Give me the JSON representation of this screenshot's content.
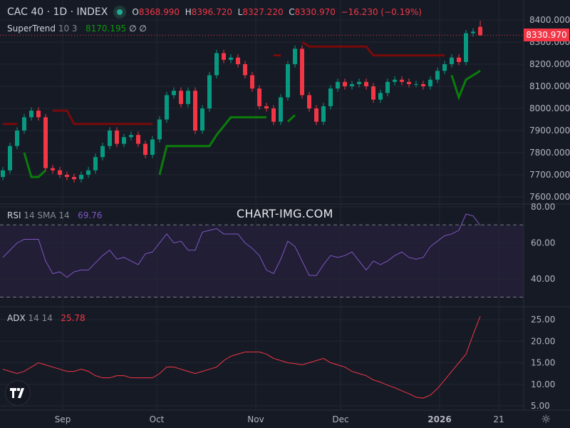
{
  "header": {
    "symbol": "CAC 40 · 1D · INDEX",
    "open_label": "O",
    "open": "8368.990",
    "high_label": "H",
    "high": "8396.720",
    "low_label": "L",
    "low": "8327.220",
    "close_label": "C",
    "close": "8330.970",
    "change": "−16.230 (−0.19%)"
  },
  "supertrend_legend": {
    "name": "SuperTrend",
    "params": "10 3",
    "value": "8170.195",
    "extra1": "∅",
    "extra2": "∅"
  },
  "rsi_legend": {
    "name": "RSI",
    "params": "14 SMA 14",
    "value": "69.76"
  },
  "adx_legend": {
    "name": "ADX",
    "params": "14 14",
    "value": "25.78"
  },
  "watermark": "CHART-IMG.COM",
  "last_price": "8330.970",
  "logo_text": "TV",
  "colors": {
    "background": "#161a25",
    "up": "#089981",
    "down": "#f23645",
    "supertrend_up": "#0b7d0b",
    "supertrend_down": "#7a0a0a",
    "rsi": "#7e57c2",
    "adx": "#f23645"
  },
  "price_axis": [
    "8400.000",
    "8300.000",
    "8200.000",
    "8100.000",
    "8000.000",
    "7900.000",
    "7800.000",
    "7700.000",
    "7600.000"
  ],
  "rsi_axis": [
    "80.00",
    "60.00",
    "40.00"
  ],
  "adx_axis": [
    "25.00",
    "20.00",
    "15.00",
    "10.00",
    "5.00"
  ],
  "time_axis": [
    "Sep",
    "Oct",
    "Nov",
    "Dec",
    "2026",
    "21"
  ],
  "chart_data": [
    {
      "type": "candlestick",
      "title": "CAC 40 · 1D · INDEX",
      "ylim": [
        7600,
        8400
      ],
      "last_candle": {
        "open": 8368.99,
        "high": 8396.72,
        "low": 8327.22,
        "close": 8330.97
      },
      "close": [
        7720,
        7830,
        7900,
        7960,
        7990,
        7960,
        7730,
        7720,
        7700,
        7690,
        7680,
        7700,
        7720,
        7780,
        7830,
        7900,
        7840,
        7870,
        7880,
        7840,
        7790,
        7860,
        7950,
        8060,
        8080,
        8020,
        8080,
        7900,
        8000,
        8150,
        8250,
        8220,
        8230,
        8200,
        8150,
        8090,
        8010,
        8000,
        7940,
        8050,
        8200,
        8270,
        8060,
        8000,
        7940,
        8010,
        8090,
        8120,
        8100,
        8110,
        8120,
        8100,
        8040,
        8070,
        8120,
        8130,
        8120,
        8110,
        8110,
        8100,
        8130,
        8170,
        8200,
        8230,
        8210,
        8340,
        8347.2,
        8330.97
      ],
      "supertrend_up": [
        null,
        null,
        null,
        7800,
        7690,
        7690,
        7720,
        null,
        null,
        null,
        null,
        null,
        null,
        null,
        null,
        null,
        null,
        null,
        null,
        null,
        null,
        null,
        7700,
        7830,
        7830,
        7830,
        7830,
        7830,
        7830,
        7830,
        7880,
        7920,
        7960,
        7960,
        7960,
        7960,
        7960,
        7960,
        null,
        null,
        7940,
        7970,
        null,
        null,
        null,
        null,
        null,
        null,
        null,
        null,
        null,
        null,
        null,
        null,
        null,
        null,
        null,
        null,
        null,
        null,
        null,
        null,
        null,
        8150,
        8050,
        8130,
        8150,
        8170.195
      ],
      "supertrend_down": [
        7930,
        7930,
        7930,
        null,
        null,
        null,
        null,
        7990,
        7990,
        7990,
        7930,
        7930,
        7930,
        7930,
        7930,
        7930,
        7930,
        7930,
        7930,
        7930,
        7930,
        7930,
        null,
        null,
        null,
        null,
        null,
        null,
        null,
        null,
        null,
        null,
        null,
        null,
        null,
        null,
        null,
        null,
        8240,
        8240,
        null,
        null,
        8300,
        8280,
        8280,
        8280,
        8280,
        8280,
        8280,
        8280,
        8280,
        8280,
        8240,
        8240,
        8240,
        8240,
        8240,
        8240,
        8240,
        8240,
        8240,
        8240,
        8240,
        null,
        null,
        null,
        null,
        null
      ]
    },
    {
      "type": "line",
      "title": "RSI 14 SMA 14",
      "ylim": [
        30,
        80
      ],
      "bands": [
        70,
        30
      ],
      "values": [
        52,
        56,
        60,
        62,
        62,
        62,
        50,
        43,
        44,
        41,
        44,
        45,
        45,
        49,
        53,
        56,
        51,
        52,
        50,
        48,
        54,
        55,
        60,
        65,
        60,
        61,
        56,
        56,
        66,
        67,
        68,
        65,
        65,
        65,
        60,
        57,
        53,
        45,
        43,
        51,
        61,
        58,
        50,
        42,
        42,
        48,
        53,
        52,
        53,
        55,
        50,
        45,
        50,
        48,
        50,
        53,
        55,
        52,
        51,
        52,
        58,
        61,
        64,
        65,
        67,
        76,
        75,
        69.76
      ]
    },
    {
      "type": "line",
      "title": "ADX 14 14",
      "ylim": [
        5,
        25
      ],
      "values": [
        13.5,
        13,
        12.5,
        13,
        14,
        15,
        14.5,
        14,
        13.5,
        13,
        13,
        13.5,
        13,
        12,
        11.5,
        11.5,
        12,
        12,
        11.5,
        11.5,
        11.5,
        11.5,
        12.5,
        14,
        14,
        13.5,
        13,
        12.5,
        13,
        13.5,
        14,
        15.5,
        16.5,
        17,
        17.5,
        17.5,
        17.5,
        17,
        16,
        15.5,
        15,
        14.8,
        14.5,
        15,
        15.5,
        16,
        15,
        14.5,
        14,
        13,
        12.5,
        12,
        11,
        10.5,
        9.8,
        9.2,
        8.5,
        7.8,
        7,
        6.8,
        7.5,
        9,
        11,
        13,
        15,
        17,
        21.5,
        25.78
      ]
    }
  ]
}
